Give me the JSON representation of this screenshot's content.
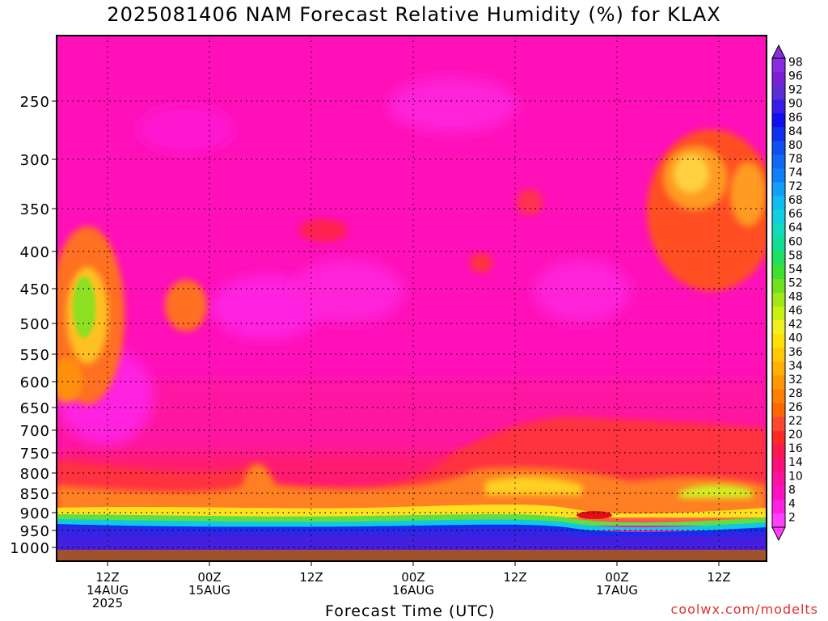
{
  "chart_data": {
    "type": "heatmap",
    "title": "2025081406 NAM Forecast Relative Humidity (%) for KLAX",
    "xlabel": "Forecast Time (UTC)",
    "ylabel": "",
    "y_ticks": [
      "250",
      "300",
      "350",
      "400",
      "450",
      "500",
      "550",
      "600",
      "650",
      "700",
      "750",
      "800",
      "850",
      "900",
      "950",
      "1000"
    ],
    "x_ticks": [
      {
        "hour": "12Z",
        "date": "14AUG",
        "year": "2025"
      },
      {
        "hour": "00Z",
        "date": "15AUG",
        "year": ""
      },
      {
        "hour": "12Z",
        "date": "",
        "year": ""
      },
      {
        "hour": "00Z",
        "date": "16AUG",
        "year": ""
      },
      {
        "hour": "12Z",
        "date": "",
        "year": ""
      },
      {
        "hour": "00Z",
        "date": "17AUG",
        "year": ""
      },
      {
        "hour": "12Z",
        "date": "",
        "year": ""
      }
    ],
    "colorbar_labels": [
      "98",
      "96",
      "92",
      "90",
      "86",
      "84",
      "80",
      "78",
      "74",
      "72",
      "68",
      "66",
      "64",
      "60",
      "58",
      "54",
      "52",
      "48",
      "46",
      "42",
      "40",
      "36",
      "34",
      "32",
      "28",
      "26",
      "22",
      "20",
      "16",
      "14",
      "10",
      "8",
      "4",
      "2"
    ],
    "colorbar_colors": [
      "#8a2be2",
      "#7b1fd6",
      "#5a2dd6",
      "#3a1be6",
      "#1010ee",
      "#1030f0",
      "#1050f0",
      "#1068f5",
      "#1080f8",
      "#10a0f8",
      "#10bdf0",
      "#10d0e0",
      "#10dcbc",
      "#10e090",
      "#20e060",
      "#40e030",
      "#70e020",
      "#a0e818",
      "#c8f010",
      "#f0f020",
      "#ffe000",
      "#ffc800",
      "#ffb000",
      "#ff9800",
      "#ff8000",
      "#ff6800",
      "#ff4830",
      "#ff2828",
      "#ff1850",
      "#ff1078",
      "#ff10a0",
      "#ff10c0",
      "#ff20e0",
      "#ff40ff"
    ],
    "grid": true,
    "legend": "right"
  },
  "credit": "coolwx.com/modelts"
}
